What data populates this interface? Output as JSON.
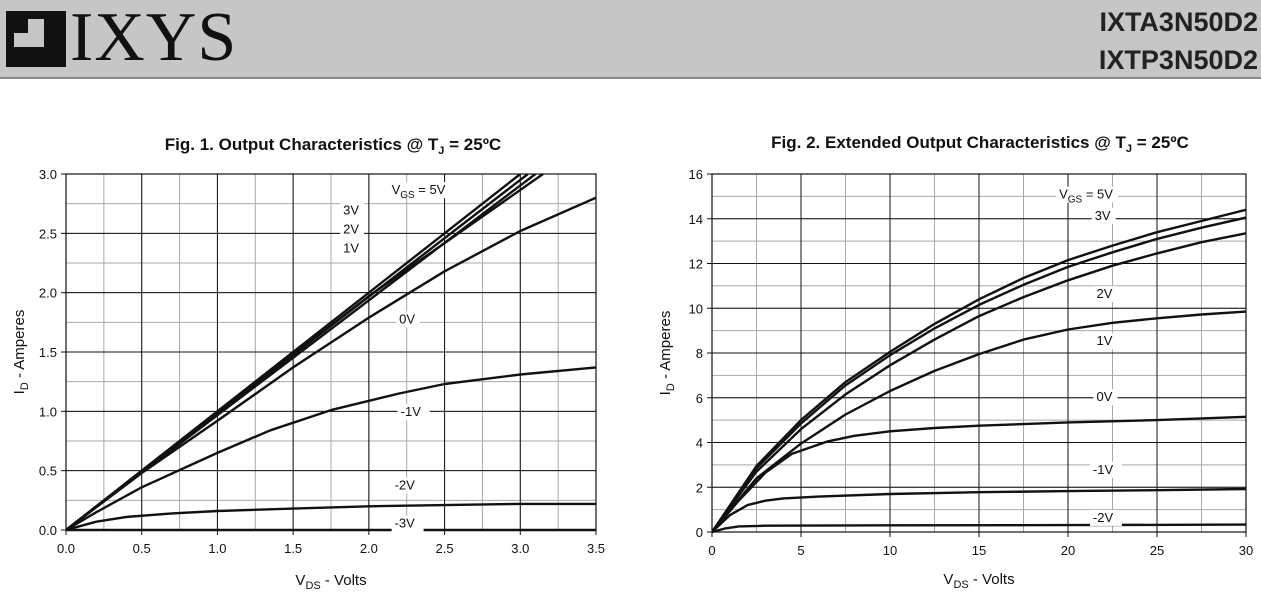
{
  "header": {
    "logo_text": "IXYS",
    "part_numbers": [
      "IXTA3N50D2",
      "IXTP3N50D2"
    ]
  },
  "chart_data": [
    {
      "type": "line",
      "title_main": "Fig. 1. Output Characteristics @ T",
      "title_sub": "J",
      "title_end": " = 25ºC",
      "xlabel_main": "V",
      "xlabel_sub": "DS",
      "xlabel_end": " - Volts",
      "ylabel_main": "I",
      "ylabel_sub": "D",
      "ylabel_end": " - Amperes",
      "xlim": [
        0,
        3.5
      ],
      "ylim": [
        0,
        3.0
      ],
      "x_ticks": [
        0,
        0.5,
        1.0,
        1.5,
        2.0,
        2.5,
        3.0,
        3.5
      ],
      "x_tick_labels": [
        "0.0",
        "0.5",
        "1.0",
        "1.5",
        "2.0",
        "2.5",
        "3.0",
        "3.5"
      ],
      "y_ticks": [
        0,
        0.5,
        1.0,
        1.5,
        2.0,
        2.5,
        3.0
      ],
      "y_tick_labels": [
        "0.0",
        "0.5",
        "1.0",
        "1.5",
        "2.0",
        "2.5",
        "3.0"
      ],
      "grid": true,
      "grid_minor_x": 0.25,
      "grid_minor_y": 0.25,
      "series": [
        {
          "name": "5V",
          "x": [
            0,
            3.0
          ],
          "y": [
            0,
            3.0
          ]
        },
        {
          "name": "3V",
          "x": [
            0,
            3.05
          ],
          "y": [
            0,
            3.0
          ]
        },
        {
          "name": "2V",
          "x": [
            0,
            3.1
          ],
          "y": [
            0,
            3.0
          ]
        },
        {
          "name": "1V",
          "x": [
            0,
            1.0,
            2.0,
            3.15
          ],
          "y": [
            0,
            0.99,
            1.97,
            3.0
          ]
        },
        {
          "name": "0V",
          "x": [
            0,
            0.5,
            1.0,
            1.5,
            2.0,
            2.5,
            3.0,
            3.5
          ],
          "y": [
            0,
            0.48,
            0.92,
            1.37,
            1.79,
            2.18,
            2.52,
            2.8
          ]
        },
        {
          "name": "-1V",
          "x": [
            0,
            0.2,
            0.5,
            1.0,
            1.35,
            1.75,
            2.2,
            2.5,
            3.0,
            3.5
          ],
          "y": [
            0,
            0.15,
            0.36,
            0.65,
            0.84,
            1.01,
            1.15,
            1.23,
            1.31,
            1.37
          ]
        },
        {
          "name": "-2V",
          "x": [
            0,
            0.2,
            0.4,
            0.7,
            1.0,
            1.5,
            2.0,
            2.5,
            3.0,
            3.5
          ],
          "y": [
            0,
            0.07,
            0.11,
            0.14,
            0.16,
            0.18,
            0.2,
            0.21,
            0.22,
            0.22
          ]
        },
        {
          "name": "-3V",
          "x": [
            0,
            3.5
          ],
          "y": [
            0,
            0.0
          ]
        }
      ],
      "annotations": [
        {
          "text": "V",
          "sub": "GS",
          "rest": " = 5V",
          "x": 2.15,
          "y": 2.83
        },
        {
          "text": "3V",
          "x": 1.83,
          "y": 2.66
        },
        {
          "text": "2V",
          "x": 1.83,
          "y": 2.5
        },
        {
          "text": "1V",
          "x": 1.83,
          "y": 2.34
        },
        {
          "text": "0V",
          "x": 2.2,
          "y": 1.74
        },
        {
          "text": "-1V",
          "x": 2.21,
          "y": 0.96
        },
        {
          "text": "-2V",
          "x": 2.17,
          "y": 0.34
        },
        {
          "text": "-3V",
          "x": 2.17,
          "y": 0.02
        }
      ]
    },
    {
      "type": "line",
      "title_main": "Fig. 2. Extended Output Characteristics @ T",
      "title_sub": "J",
      "title_end": " = 25ºC",
      "xlabel_main": "V",
      "xlabel_sub": "DS",
      "xlabel_end": " - Volts",
      "ylabel_main": "I",
      "ylabel_sub": "D",
      "ylabel_end": " - Amperes",
      "xlim": [
        0,
        30
      ],
      "ylim": [
        0,
        16
      ],
      "x_ticks": [
        0,
        5,
        10,
        15,
        20,
        25,
        30
      ],
      "x_tick_labels": [
        "0",
        "5",
        "10",
        "15",
        "20",
        "25",
        "30"
      ],
      "y_ticks": [
        0,
        2,
        4,
        6,
        8,
        10,
        12,
        14,
        16
      ],
      "y_tick_labels": [
        "0",
        "2",
        "4",
        "6",
        "8",
        "10",
        "12",
        "14",
        "16"
      ],
      "grid": true,
      "grid_minor_x": 2.5,
      "grid_minor_y": 1,
      "series": [
        {
          "name": "5V",
          "x": [
            0,
            2.5,
            5,
            7.5,
            10,
            12.5,
            15,
            17.5,
            20,
            22.5,
            25,
            27.5,
            30
          ],
          "y": [
            0,
            2.95,
            5.0,
            6.7,
            8.05,
            9.3,
            10.4,
            11.35,
            12.15,
            12.8,
            13.4,
            13.9,
            14.4
          ]
        },
        {
          "name": "3V",
          "x": [
            0,
            2.5,
            5,
            7.5,
            10,
            12.5,
            15,
            17.5,
            20,
            22.5,
            25,
            27.5,
            30
          ],
          "y": [
            0,
            2.85,
            4.85,
            6.55,
            7.9,
            9.1,
            10.15,
            11.05,
            11.85,
            12.5,
            13.1,
            13.6,
            14.05
          ]
        },
        {
          "name": "2V",
          "x": [
            0,
            2.5,
            5,
            7.5,
            10,
            12.5,
            15,
            17.5,
            20,
            22.5,
            25,
            27.5,
            30
          ],
          "y": [
            0,
            2.7,
            4.6,
            6.15,
            7.45,
            8.6,
            9.65,
            10.5,
            11.25,
            11.9,
            12.45,
            12.95,
            13.35
          ]
        },
        {
          "name": "1V",
          "x": [
            0,
            2.5,
            5,
            7.5,
            10,
            12.5,
            15,
            17.5,
            20,
            22.5,
            25,
            27.5,
            30
          ],
          "y": [
            0,
            2.4,
            3.95,
            5.25,
            6.3,
            7.2,
            7.95,
            8.6,
            9.05,
            9.35,
            9.55,
            9.72,
            9.85
          ]
        },
        {
          "name": "0V",
          "x": [
            0,
            1.5,
            3,
            4.5,
            6.5,
            8,
            10,
            12.5,
            15,
            20,
            25,
            30
          ],
          "y": [
            0,
            1.4,
            2.65,
            3.5,
            4.05,
            4.3,
            4.5,
            4.65,
            4.75,
            4.9,
            5.0,
            5.15
          ]
        },
        {
          "name": "-1V",
          "x": [
            0,
            1,
            2,
            3,
            4,
            6,
            10,
            15,
            20,
            25,
            30
          ],
          "y": [
            0,
            0.75,
            1.2,
            1.4,
            1.5,
            1.58,
            1.7,
            1.78,
            1.83,
            1.87,
            1.92
          ]
        },
        {
          "name": "-2V",
          "x": [
            0,
            0.7,
            1.5,
            3,
            10,
            20,
            30
          ],
          "y": [
            0,
            0.15,
            0.25,
            0.28,
            0.3,
            0.31,
            0.33
          ]
        }
      ],
      "annotations": [
        {
          "text": "V",
          "sub": "GS",
          "rest": " = 5V",
          "x": 19.5,
          "y": 14.9
        },
        {
          "text": "3V",
          "x": 21.5,
          "y": 13.95
        },
        {
          "text": "2V",
          "x": 21.6,
          "y": 10.45
        },
        {
          "text": "1V",
          "x": 21.6,
          "y": 8.35
        },
        {
          "text": "0V",
          "x": 21.6,
          "y": 5.85
        },
        {
          "text": "-1V",
          "x": 21.4,
          "y": 2.6
        },
        {
          "text": "-2V",
          "x": 21.4,
          "y": 0.45
        }
      ]
    }
  ]
}
